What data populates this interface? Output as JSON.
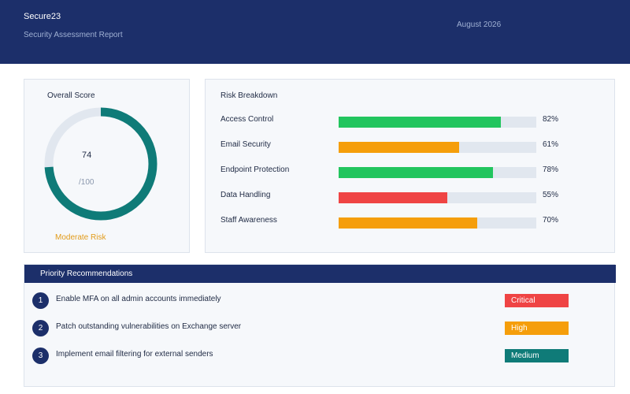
{
  "header": {
    "brand": "Secure23",
    "subtitle": "Security Assessment Report",
    "date": "August 2026",
    "background": "#1c2f6a"
  },
  "score": {
    "title": "Overall Score",
    "value": "74",
    "max": "/100",
    "value_fraction": 0.74,
    "status": "Moderate Risk",
    "ring_color": "#0f7b78",
    "track_color": "#e1e7ef",
    "status_color": "#e29b1a"
  },
  "risk": {
    "title": "Risk Breakdown",
    "items": [
      {
        "label": "Access Control",
        "percent": 82,
        "percent_label": "82%",
        "color": "#22c55e"
      },
      {
        "label": "Email Security",
        "percent": 61,
        "percent_label": "61%",
        "color": "#f59e0b"
      },
      {
        "label": "Endpoint Protection",
        "percent": 78,
        "percent_label": "78%",
        "color": "#22c55e"
      },
      {
        "label": "Data Handling",
        "percent": 55,
        "percent_label": "55%",
        "color": "#ef4444"
      },
      {
        "label": "Staff Awareness",
        "percent": 70,
        "percent_label": "70%",
        "color": "#f59e0b"
      }
    ]
  },
  "recommendations": {
    "title": "Priority Recommendations",
    "items": [
      {
        "num": "1",
        "text": "Enable MFA on all admin accounts immediately",
        "priority": "Critical",
        "priority_color": "#ef4444"
      },
      {
        "num": "2",
        "text": "Patch outstanding vulnerabilities on Exchange server",
        "priority": "High",
        "priority_color": "#f59e0b"
      },
      {
        "num": "3",
        "text": "Implement email filtering for external senders",
        "priority": "Medium",
        "priority_color": "#0f7b78"
      }
    ]
  }
}
